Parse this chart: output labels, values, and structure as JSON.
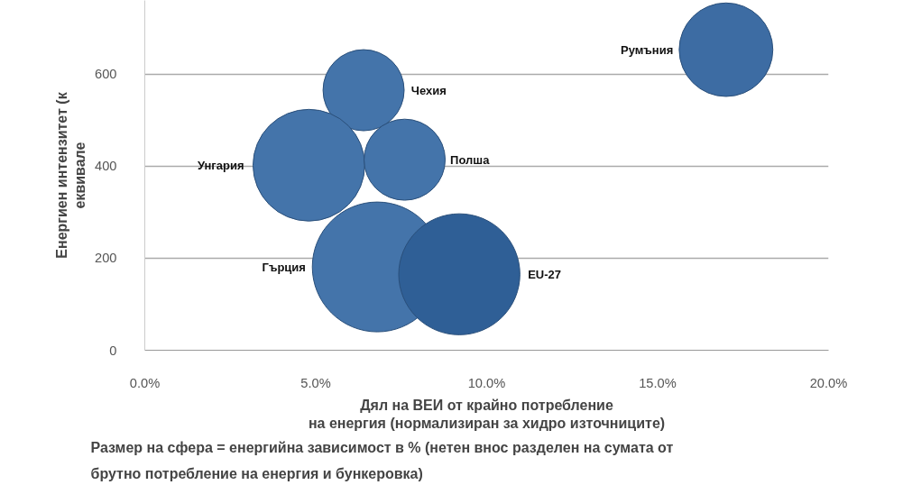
{
  "chart_data": {
    "type": "bubble",
    "x": [
      6.4,
      4.8,
      7.6,
      6.8,
      9.2,
      17.0
    ],
    "values": [
      565,
      402,
      414,
      181,
      165,
      653
    ],
    "sizes": [
      0.39,
      0.74,
      0.39,
      1,
      0.87,
      0.52
    ],
    "colors": [
      "#4474aa",
      "#4474aa",
      "#4474aa",
      "#4474aa",
      "#2f5f96",
      "#3d6ca3"
    ],
    "xlim": [
      0,
      20
    ],
    "ylim": [
      0,
      760
    ],
    "xticks": [
      {
        "value": 0,
        "label": "0.0%"
      },
      {
        "value": 5,
        "label": "5.0%"
      },
      {
        "value": 10,
        "label": "10.0%"
      },
      {
        "value": 15,
        "label": "15.0%"
      },
      {
        "value": 20,
        "label": "20.0%"
      }
    ],
    "yticks": [
      0,
      200,
      400,
      600
    ],
    "grid": "y",
    "xlabel": "Дял на ВЕИ от крайно потребление\nна енергия (нормализиран за хидро източниците)",
    "ylabel": "Енергиен интензитет (к\nеквивале",
    "annotations": [
      "Чехия",
      "Унгария",
      "Полша",
      "Гърция",
      "EU-27",
      "Румъния",
      "Размер на сфера = енергийна зависимост в % (нетен внос разделен на сумата от брутно потребление на енергия и бункеровка)"
    ]
  }
}
